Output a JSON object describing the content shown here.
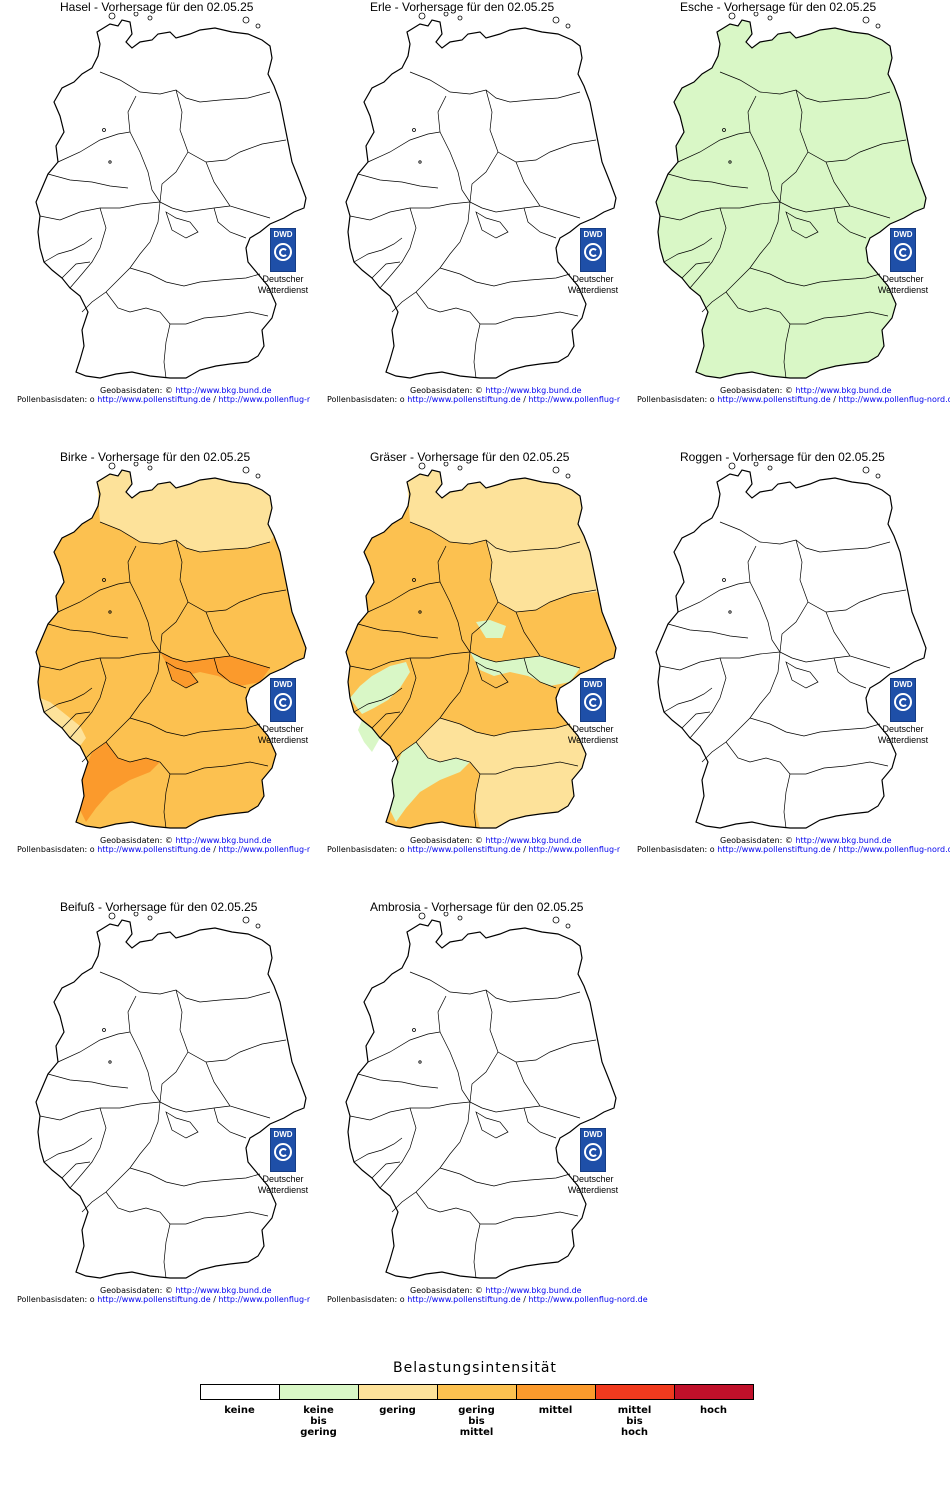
{
  "maps": [
    {
      "title": "Hasel - Vorhersage für den 02.05.25",
      "fill_key": "none"
    },
    {
      "title": "Erle - Vorhersage für den 02.05.25",
      "fill_key": "none"
    },
    {
      "title": "Esche - Vorhersage für den 02.05.25",
      "fill_key": "esche"
    },
    {
      "title": "Birke - Vorhersage für den 02.05.25",
      "fill_key": "birke"
    },
    {
      "title": "Gräser - Vorhersage für den 02.05.25",
      "fill_key": "graeser"
    },
    {
      "title": "Roggen - Vorhersage für den 02.05.25",
      "fill_key": "none"
    },
    {
      "title": "Beifuß - Vorhersage für den 02.05.25",
      "fill_key": "none"
    },
    {
      "title": "Ambrosia - Vorhersage für den 02.05.25",
      "fill_key": "none"
    }
  ],
  "dwd_logo": {
    "short": "DWD",
    "line1": "Deutscher",
    "line2": "Wetterdienst"
  },
  "footer": {
    "geo_label": "Geobasisdaten:",
    "geo_symbol": "©",
    "geo_link": "http://www.bkg.bund.de",
    "pollen_label": "Pollenbasisdaten:",
    "pollen_bullet": "o",
    "pollen_link1": "http://www.pollenstiftung.de",
    "separator": "/",
    "pollen_link2": "http://www.pollenflug-nord.de"
  },
  "legend": {
    "title": "Belastungsintensität",
    "levels": [
      {
        "label": "keine",
        "color": "#ffffff"
      },
      {
        "label": "keine\nbis\ngering",
        "color": "#d9f7c6"
      },
      {
        "label": "gering",
        "color": "#fde29a"
      },
      {
        "label": "gering\nbis\nmittel",
        "color": "#fcc150"
      },
      {
        "label": "mittel",
        "color": "#fb9a2c"
      },
      {
        "label": "mittel\nbis\nhoch",
        "color": "#f03a1e"
      },
      {
        "label": "hoch",
        "color": "#c0102a"
      }
    ]
  }
}
